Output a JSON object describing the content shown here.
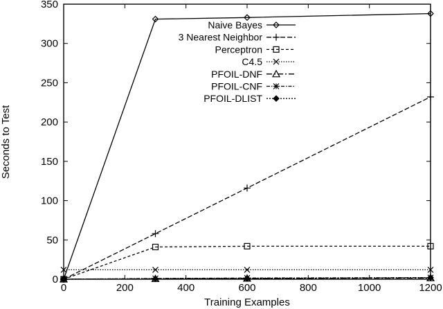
{
  "chart_data": {
    "type": "line",
    "title": "",
    "xlabel": "Training Examples",
    "ylabel": "Seconds to Test",
    "xlim": [
      0,
      1200
    ],
    "ylim": [
      0,
      350
    ],
    "xticks": [
      0,
      200,
      400,
      600,
      800,
      1000,
      1200
    ],
    "yticks": [
      0,
      50,
      100,
      150,
      200,
      250,
      300,
      350
    ],
    "grid": false,
    "legend_position": "top-right",
    "x": [
      0,
      300,
      600,
      1200
    ],
    "series": [
      {
        "name": "Naive Bayes",
        "marker": "diamond",
        "dash": "solid",
        "values": [
          0,
          331,
          333,
          338
        ]
      },
      {
        "name": "3 Nearest Neighbor",
        "marker": "plus",
        "dash": "dashed",
        "values": [
          0,
          58,
          116,
          232
        ]
      },
      {
        "name": "Perceptron",
        "marker": "square",
        "dash": "short-dashed",
        "values": [
          0,
          41,
          42,
          42
        ]
      },
      {
        "name": "C4.5",
        "marker": "cross",
        "dash": "dotted",
        "values": [
          12,
          12,
          12,
          12
        ]
      },
      {
        "name": "PFOIL-DNF",
        "marker": "triangle",
        "dash": "dash-dot",
        "values": [
          0,
          0.5,
          1,
          1.5
        ]
      },
      {
        "name": "PFOIL-CNF",
        "marker": "star",
        "dash": "dash-dot-short",
        "values": [
          0,
          1,
          1.5,
          2
        ]
      },
      {
        "name": "PFOIL-DLIST",
        "marker": "filled-diamond",
        "dash": "dense-dotted",
        "values": [
          0,
          0.5,
          1,
          2
        ]
      }
    ]
  }
}
